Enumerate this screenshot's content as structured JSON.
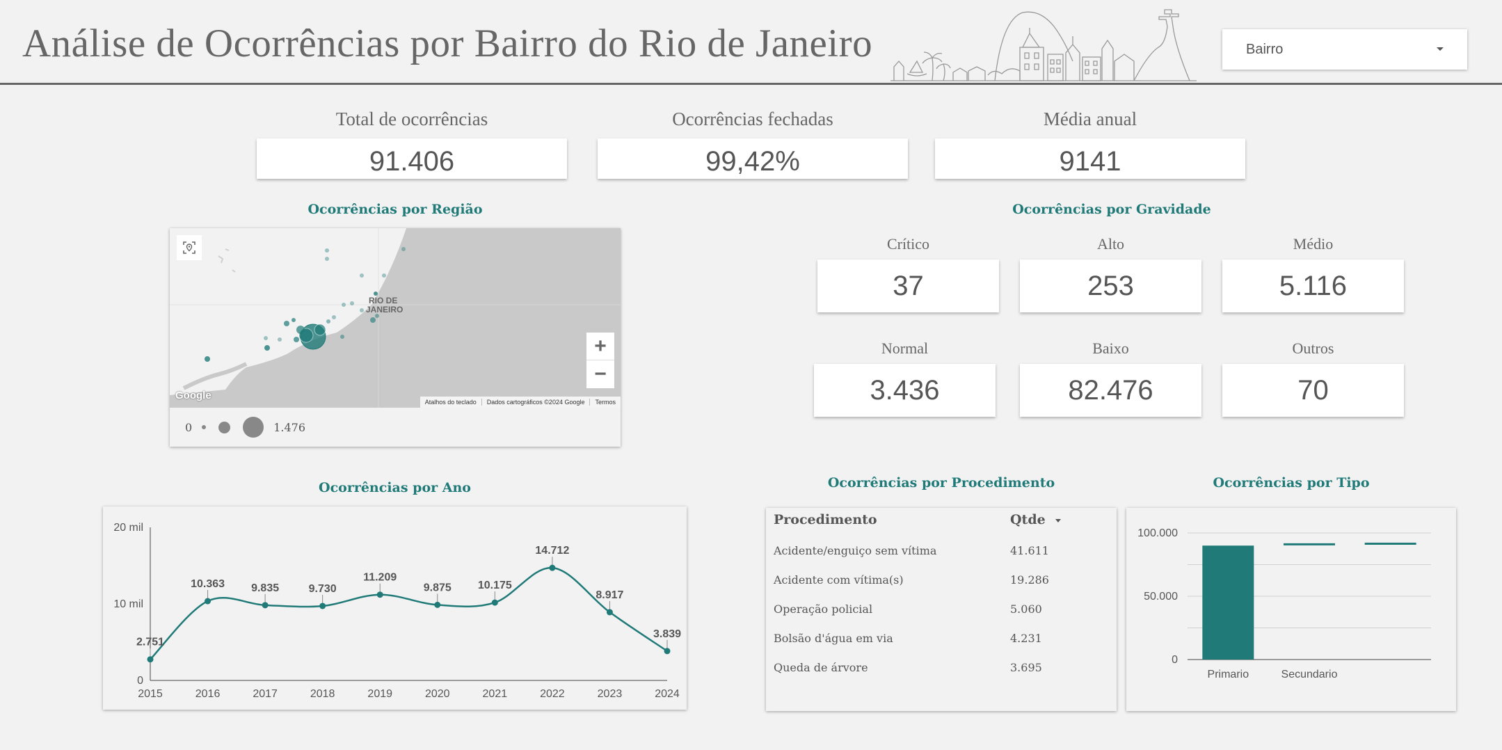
{
  "header": {
    "title": "Análise de Ocorrências por Bairro do Rio de Janeiro",
    "bairro_select": {
      "label": "Bairro"
    }
  },
  "kpis": [
    {
      "label": "Total de ocorrências",
      "value": "91.406"
    },
    {
      "label": "Ocorrências fechadas",
      "value": "99,42%"
    },
    {
      "label": "Média anual",
      "value": "9141"
    }
  ],
  "map_section": {
    "title": "Ocorrências por Região",
    "place_label_line1": "RIO DE",
    "place_label_line2": "JANEIRO",
    "zoom_in": "+",
    "zoom_out": "−",
    "google_logo": "Google",
    "footer": [
      "Atalhos do teclado",
      "Dados cartográficos ©2024 Google",
      "Termos"
    ],
    "legend": {
      "min": "0",
      "max": "1.476"
    },
    "marker_color": "#1f7a78"
  },
  "gravidade": {
    "title": "Ocorrências por Gravidade",
    "items": [
      {
        "label": "Crítico",
        "value": "37"
      },
      {
        "label": "Alto",
        "value": "253"
      },
      {
        "label": "Médio",
        "value": "5.116"
      },
      {
        "label": "Normal",
        "value": "3.436"
      },
      {
        "label": "Baixo",
        "value": "82.476"
      },
      {
        "label": "Outros",
        "value": "70"
      }
    ]
  },
  "ano_section": {
    "title": "Ocorrências por Ano"
  },
  "procedimento": {
    "title": "Ocorrências por Procedimento",
    "columns": [
      "Procedimento",
      "Qtde"
    ],
    "rows": [
      {
        "name": "Acidente/enguiço sem vítima",
        "qtde": "41.611"
      },
      {
        "name": "Acidente com vítima(s)",
        "qtde": "19.286"
      },
      {
        "name": "Operação policial",
        "qtde": "5.060"
      },
      {
        "name": "Bolsão d'água em via",
        "qtde": "4.231"
      },
      {
        "name": "Queda de árvore",
        "qtde": "3.695"
      }
    ]
  },
  "tipo_section": {
    "title": "Ocorrências por Tipo"
  },
  "chart_data": [
    {
      "type": "line",
      "title": "Ocorrências por Ano",
      "x": [
        "2015",
        "2016",
        "2017",
        "2018",
        "2019",
        "2020",
        "2021",
        "2022",
        "2023",
        "2024"
      ],
      "values": [
        2751,
        10363,
        9835,
        9730,
        11209,
        9875,
        10175,
        14712,
        8917,
        3839
      ],
      "data_labels": [
        "2.751",
        "10.363",
        "9.835",
        "9.730",
        "11.209",
        "9.875",
        "10.175",
        "14.712",
        "8.917",
        "3.839"
      ],
      "ylim": [
        0,
        20000
      ],
      "yticks": [
        0,
        10000,
        20000
      ],
      "ytick_labels": [
        "0",
        "10 mil",
        "20 mil"
      ],
      "color": "#1f7a78",
      "grid": false
    },
    {
      "type": "bar",
      "title": "Ocorrências por Tipo",
      "categories": [
        "Primario",
        "Secundario",
        ""
      ],
      "values": [
        90000,
        91000,
        91500
      ],
      "marks": [
        "bar",
        "line",
        "line"
      ],
      "ylim": [
        0,
        100000
      ],
      "yticks": [
        0,
        50000,
        100000
      ],
      "ytick_labels": [
        "0",
        "50.000",
        "100.000"
      ],
      "color": "#1f7a78",
      "grid": true
    }
  ]
}
